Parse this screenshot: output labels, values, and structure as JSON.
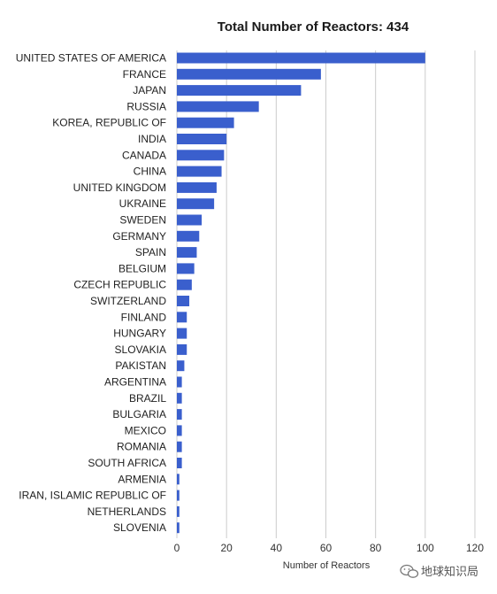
{
  "chart_data": {
    "type": "bar",
    "orientation": "horizontal",
    "title": "Total Number of Reactors: 434",
    "xlabel": "Number of Reactors",
    "ylabel": "",
    "xlim": [
      0,
      120
    ],
    "xticks": [
      0,
      20,
      40,
      60,
      80,
      100,
      120
    ],
    "grid": true,
    "bar_color": "#3a5fcd",
    "categories": [
      "UNITED STATES OF AMERICA",
      "FRANCE",
      "JAPAN",
      "RUSSIA",
      "KOREA, REPUBLIC OF",
      "INDIA",
      "CANADA",
      "CHINA",
      "UNITED KINGDOM",
      "UKRAINE",
      "SWEDEN",
      "GERMANY",
      "SPAIN",
      "BELGIUM",
      "CZECH REPUBLIC",
      "SWITZERLAND",
      "FINLAND",
      "HUNGARY",
      "SLOVAKIA",
      "PAKISTAN",
      "ARGENTINA",
      "BRAZIL",
      "BULGARIA",
      "MEXICO",
      "ROMANIA",
      "SOUTH AFRICA",
      "ARMENIA",
      "IRAN, ISLAMIC REPUBLIC OF",
      "NETHERLANDS",
      "SLOVENIA"
    ],
    "values": [
      100,
      58,
      50,
      33,
      23,
      20,
      19,
      18,
      16,
      15,
      10,
      9,
      8,
      7,
      6,
      5,
      4,
      4,
      4,
      3,
      2,
      2,
      2,
      2,
      2,
      2,
      1,
      1,
      1,
      1
    ]
  },
  "watermark": {
    "text": "地球知识局",
    "icon": "wechat-icon"
  }
}
